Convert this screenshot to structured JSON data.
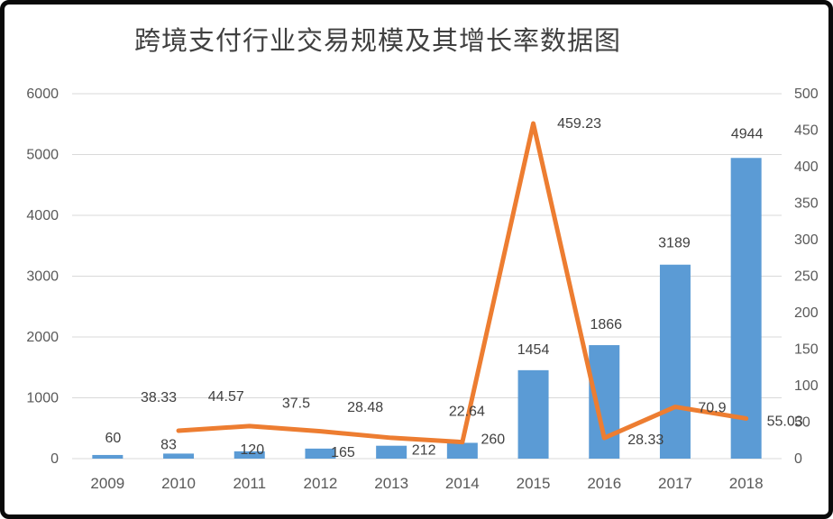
{
  "chart_data": {
    "type": "combo-bar-line",
    "title": "跨境支付行业交易规模及其增长率数据图",
    "categories": [
      "2009",
      "2010",
      "2011",
      "2012",
      "2013",
      "2014",
      "2015",
      "2016",
      "2017",
      "2018"
    ],
    "series": [
      {
        "id": "transaction-volume",
        "type": "bar",
        "axis": "left",
        "color": "#5B9BD5",
        "values": [
          60,
          83,
          120,
          165,
          212,
          260,
          1454,
          1866,
          3189,
          4944
        ],
        "label_offsets": [
          [
            6,
            -19
          ],
          [
            -11,
            -10
          ],
          [
            3,
            -2
          ],
          [
            25,
            4
          ],
          [
            36,
            5
          ],
          [
            34,
            -4
          ],
          [
            0,
            -23
          ],
          [
            2,
            -23
          ],
          [
            -1,
            -24
          ],
          [
            1,
            -27
          ]
        ]
      },
      {
        "id": "growth-rate",
        "type": "line",
        "axis": "right",
        "color": "#ED7D31",
        "values": [
          null,
          38.33,
          44.57,
          37.5,
          28.48,
          22.64,
          459.23,
          28.33,
          70.9,
          55.03
        ],
        "label_offsets": [
          null,
          [
            -22,
            -37
          ],
          [
            -26,
            -33
          ],
          [
            -27,
            -31
          ],
          [
            -29,
            -34
          ],
          [
            5,
            -34
          ],
          [
            51,
            0
          ],
          [
            46,
            2
          ],
          [
            41,
            1
          ],
          [
            43,
            3
          ]
        ]
      }
    ],
    "axes": {
      "left": {
        "min": 0,
        "max": 6000,
        "step": 1000,
        "ticks": [
          0,
          1000,
          2000,
          3000,
          4000,
          5000,
          6000
        ]
      },
      "right": {
        "min": 0,
        "max": 500,
        "step": 50,
        "ticks": [
          0,
          50,
          100,
          150,
          200,
          250,
          300,
          350,
          400,
          450,
          500
        ]
      }
    },
    "grid": "horizontal-only",
    "legend": "none",
    "colors": {
      "bar": "#5B9BD5",
      "line": "#ED7D31",
      "grid": "#D9D9D9",
      "tick_text": "#595959",
      "data_label_text": "#404040",
      "title_text": "#404040",
      "frame_border": "#0A0A0A",
      "background": "#FFFFFF"
    }
  }
}
